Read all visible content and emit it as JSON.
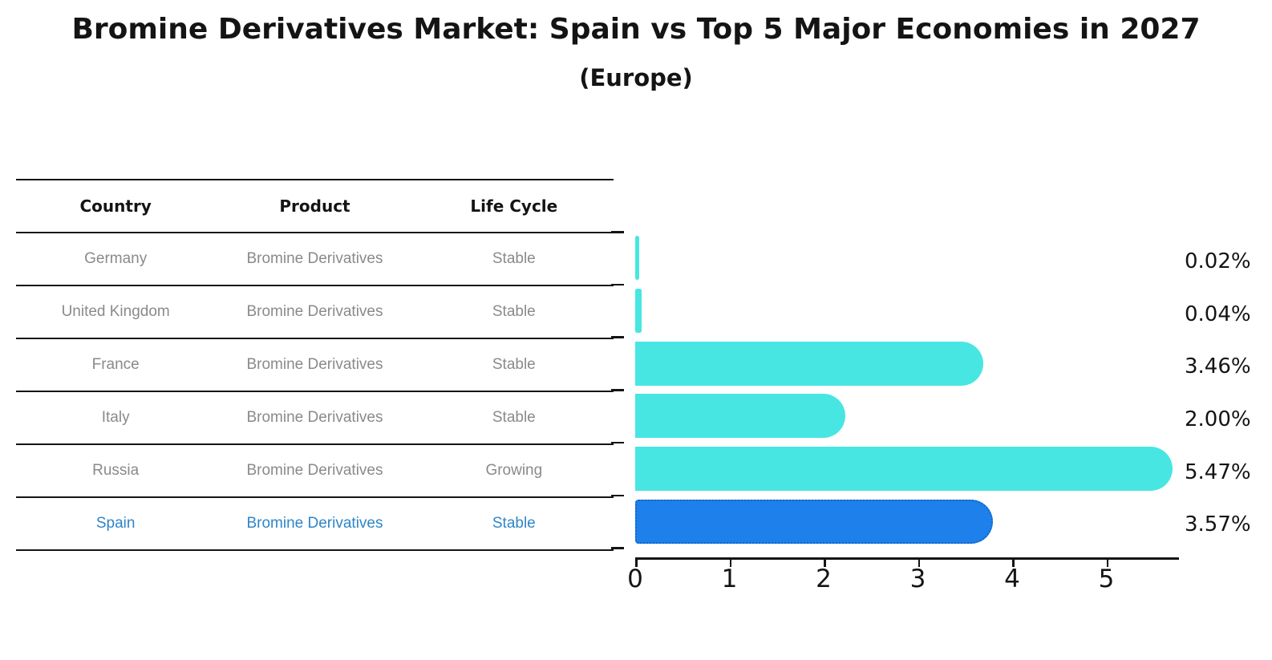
{
  "title": "Bromine Derivatives Market: Spain vs Top 5 Major Economies in 2027",
  "subtitle": "(Europe)",
  "table": {
    "headers": [
      "Country",
      "Product",
      "Life Cycle"
    ],
    "rows": [
      {
        "country": "Germany",
        "product": "Bromine Derivatives",
        "life_cycle": "Stable",
        "highlighted": false
      },
      {
        "country": "United Kingdom",
        "product": "Bromine Derivatives",
        "life_cycle": "Stable",
        "highlighted": false
      },
      {
        "country": "France",
        "product": "Bromine Derivatives",
        "life_cycle": "Stable",
        "highlighted": false
      },
      {
        "country": "Italy",
        "product": "Bromine Derivatives",
        "life_cycle": "Stable",
        "highlighted": false
      },
      {
        "country": "Russia",
        "product": "Bromine Derivatives",
        "life_cycle": "Growing",
        "highlighted": false
      },
      {
        "country": "Spain",
        "product": "Bromine Derivatives",
        "life_cycle": "Stable",
        "highlighted": true
      }
    ]
  },
  "chart_data": {
    "type": "bar",
    "orientation": "horizontal",
    "title": "Bromine Derivatives Market: Spain vs Top 5 Major Economies in 2027",
    "subtitle": "(Europe)",
    "categories": [
      "Germany",
      "United Kingdom",
      "France",
      "Italy",
      "Russia",
      "Spain"
    ],
    "values": [
      0.02,
      0.04,
      3.46,
      2.0,
      5.47,
      3.57
    ],
    "value_labels": [
      "0.02%",
      "0.04%",
      "3.46%",
      "2.00%",
      "5.47%",
      "3.57%"
    ],
    "highlight_index": 5,
    "x_ticks": [
      "0",
      "1",
      "2",
      "3",
      "4",
      "5"
    ],
    "xlim": [
      0,
      5.75
    ],
    "grid": false,
    "legend": false,
    "colors": {
      "bar": "#48e6e2",
      "highlight_bar": "#1e81eb",
      "highlight_bar_border": "#1464c8",
      "axis": "#141414",
      "value_text": "#141414",
      "table_text": "#8a8a8a",
      "table_header_text": "#141414",
      "highlight_text": "#2e86c8"
    }
  }
}
